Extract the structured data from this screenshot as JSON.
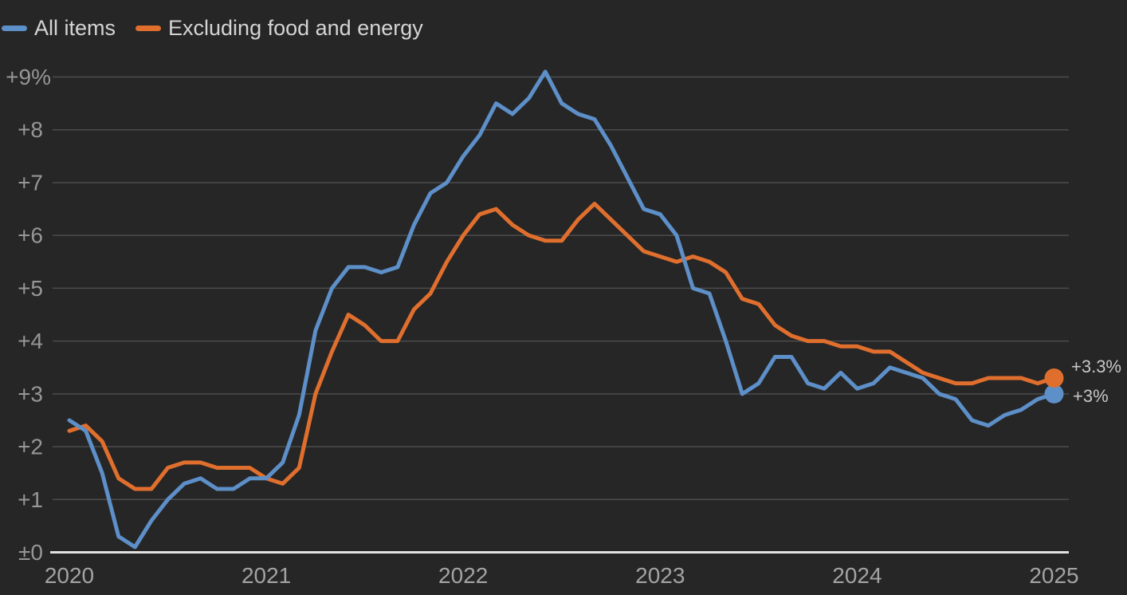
{
  "chart_data": {
    "type": "line",
    "title": "",
    "x_unit": "month",
    "x_start": "2020-01",
    "x_end": "2025-01",
    "year_ticks": [
      "2020",
      "2021",
      "2022",
      "2023",
      "2024",
      "2025"
    ],
    "y_tick_labels": [
      "±0",
      "+1",
      "+2",
      "+3",
      "+4",
      "+5",
      "+6",
      "+7",
      "+8",
      "+9%"
    ],
    "ylim": [
      0,
      9
    ],
    "grid": true,
    "legend_position": "top-left",
    "series": [
      {
        "name": "All items",
        "color": "#5d8fc8",
        "end_label": "+3%",
        "values": [
          2.5,
          2.3,
          1.5,
          0.3,
          0.1,
          0.6,
          1.0,
          1.3,
          1.4,
          1.2,
          1.2,
          1.4,
          1.4,
          1.7,
          2.6,
          4.2,
          5.0,
          5.4,
          5.4,
          5.3,
          5.4,
          6.2,
          6.8,
          7.0,
          7.5,
          7.9,
          8.5,
          8.3,
          8.6,
          9.1,
          8.5,
          8.3,
          8.2,
          7.7,
          7.1,
          6.5,
          6.4,
          6.0,
          5.0,
          4.9,
          4.0,
          3.0,
          3.2,
          3.7,
          3.7,
          3.2,
          3.1,
          3.4,
          3.1,
          3.2,
          3.5,
          3.4,
          3.3,
          3.0,
          2.9,
          2.5,
          2.4,
          2.6,
          2.7,
          2.9,
          3.0
        ]
      },
      {
        "name": "Excluding food and energy",
        "color": "#e06f2e",
        "end_label": "+3.3%",
        "values": [
          2.3,
          2.4,
          2.1,
          1.4,
          1.2,
          1.2,
          1.6,
          1.7,
          1.7,
          1.6,
          1.6,
          1.6,
          1.4,
          1.3,
          1.6,
          3.0,
          3.8,
          4.5,
          4.3,
          4.0,
          4.0,
          4.6,
          4.9,
          5.5,
          6.0,
          6.4,
          6.5,
          6.2,
          6.0,
          5.9,
          5.9,
          6.3,
          6.6,
          6.3,
          6.0,
          5.7,
          5.6,
          5.5,
          5.6,
          5.5,
          5.3,
          4.8,
          4.7,
          4.3,
          4.1,
          4.0,
          4.0,
          3.9,
          3.9,
          3.8,
          3.8,
          3.6,
          3.4,
          3.3,
          3.2,
          3.2,
          3.3,
          3.3,
          3.3,
          3.2,
          3.3
        ]
      }
    ]
  },
  "colors": {
    "background": "#262626",
    "grid": "#4c4c4c",
    "axis": "#e2e2e2",
    "tick_label": "#969696",
    "year_label": "#a3a3a3",
    "legend_label": "#d4d4d4",
    "end_label": "#c6c6c6"
  }
}
